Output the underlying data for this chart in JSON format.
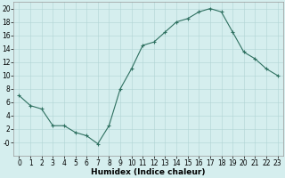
{
  "x": [
    0,
    1,
    2,
    3,
    4,
    5,
    6,
    7,
    8,
    9,
    10,
    11,
    12,
    13,
    14,
    15,
    16,
    17,
    18,
    19,
    20,
    21,
    22,
    23
  ],
  "y": [
    7,
    5.5,
    5,
    2.5,
    2.5,
    1.5,
    1,
    -0.2,
    2.5,
    8,
    11,
    14.5,
    15,
    16.5,
    18,
    18.5,
    19.5,
    20,
    19.5,
    16.5,
    13.5,
    12.5,
    11,
    10
  ],
  "line_color": "#2e7060",
  "marker": "+",
  "marker_color": "#2e7060",
  "bg_color": "#d5eeee",
  "grid_color": "#b0d4d4",
  "xlabel": "Humidex (Indice chaleur)",
  "xlim": [
    -0.5,
    23.5
  ],
  "ylim": [
    -2,
    21
  ],
  "yticks": [
    0,
    2,
    4,
    6,
    8,
    10,
    12,
    14,
    16,
    18,
    20
  ],
  "ytick_labels": [
    "-0",
    "2",
    "4",
    "6",
    "8",
    "10",
    "12",
    "14",
    "16",
    "18",
    "20"
  ],
  "xticks": [
    0,
    1,
    2,
    3,
    4,
    5,
    6,
    7,
    8,
    9,
    10,
    11,
    12,
    13,
    14,
    15,
    16,
    17,
    18,
    19,
    20,
    21,
    22,
    23
  ],
  "tick_fontsize": 5.5,
  "xlabel_fontsize": 6.5,
  "linewidth": 0.8,
  "markersize": 3.5
}
